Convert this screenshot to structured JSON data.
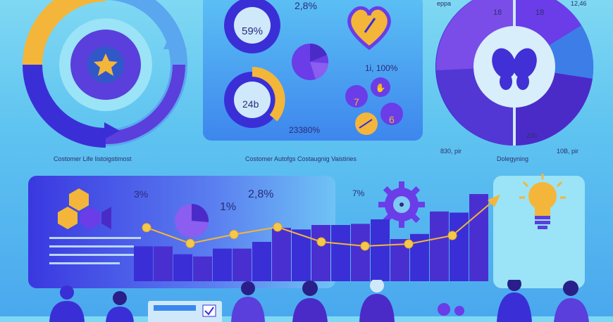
{
  "colors": {
    "accent_blue": "#3a2fd6",
    "purple": "#6a3de8",
    "gold": "#f3b63a",
    "sky": "#5fc4f0",
    "light_panel": "#9be3f6"
  },
  "top_left": {
    "caption": "Costomer Life Iistoigstimost",
    "icon": "star-icon"
  },
  "top_middle": {
    "donut_top_label": "59%",
    "donut_top_right_label": "2,8%",
    "donut_bottom_label": "24b",
    "side_value": "1Ꭵ, 100%",
    "bottom_value": "23380%",
    "bubble_1": "7",
    "bubble_2": "6",
    "caption": "Costomer Autofgs Costaugnig Vaistiries",
    "icons": [
      "heart-icon",
      "pie-icon",
      "hand-icon",
      "arrow-icon"
    ]
  },
  "top_right": {
    "top_labels": [
      "eppa",
      "18",
      "18",
      "12,46"
    ],
    "inner_label": "23b",
    "bottom_left": "830, pir",
    "bottom_middle": "Dolegyning",
    "bottom_right": "10B, pir",
    "icon": "butterfly-icon"
  },
  "bottom": {
    "pct_1": "3%",
    "pct_2": "1%",
    "pct_3": "2,8%",
    "pct_4": "7%",
    "icons": [
      "hexagon-icon",
      "gear-icon",
      "lightbulb-icon",
      "trend-arrow-icon"
    ]
  },
  "chart_data": {
    "type": "bar",
    "values": [
      62,
      62,
      48,
      44,
      58,
      58,
      70,
      95,
      92,
      100,
      100,
      102,
      110,
      75,
      84,
      124,
      122,
      155
    ],
    "line": [
      115,
      85,
      102,
      116,
      88,
      80,
      84,
      100,
      170
    ]
  }
}
